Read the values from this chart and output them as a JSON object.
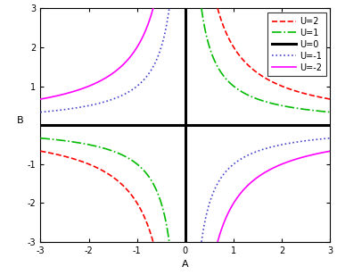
{
  "title": "",
  "xlabel": "A",
  "ylabel": "B",
  "xlim": [
    -3,
    3
  ],
  "ylim": [
    -3,
    3
  ],
  "xticks": [
    -3,
    -2,
    -1,
    0,
    1,
    2,
    3
  ],
  "yticks": [
    -3,
    -2,
    -1,
    0,
    1,
    2,
    3
  ],
  "curves": [
    {
      "U": 2,
      "color": "#ff0000",
      "linestyle": "--",
      "linewidth": 1.2,
      "label": "U=2"
    },
    {
      "U": 1,
      "color": "#00bb00",
      "linestyle": "-.",
      "linewidth": 1.2,
      "label": "U=1"
    },
    {
      "U": 0,
      "color": "#000000",
      "linestyle": "-",
      "linewidth": 2.2,
      "label": "U=0"
    },
    {
      "U": -1,
      "color": "#4444cc",
      "linestyle": ":",
      "linewidth": 1.2,
      "label": "U=-1"
    },
    {
      "U": -2,
      "color": "#ff00ff",
      "linestyle": "-",
      "linewidth": 1.2,
      "label": "U=-2"
    }
  ],
  "axline_color": "#000000",
  "axline_linewidth": 2.2,
  "background_color": "#ffffff",
  "legend_fontsize": 7,
  "axis_fontsize": 8,
  "tick_fontsize": 7,
  "figwidth": 3.78,
  "figheight": 3.08,
  "dpi": 100
}
